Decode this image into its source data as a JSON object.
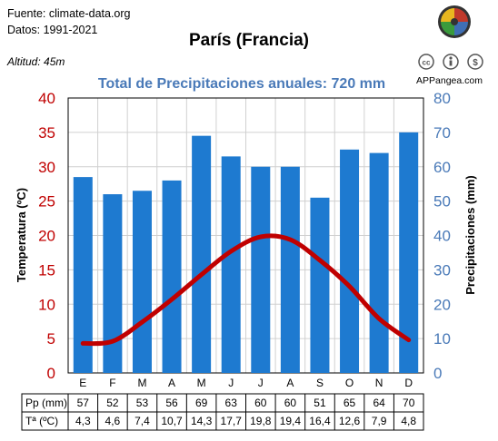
{
  "source": {
    "line1": "Fuente: climate-data.org",
    "line2": "Datos: 1991-2021"
  },
  "title": "París (Francia)",
  "altitude": "Altitud: 45m",
  "site": "APPangea.com",
  "logo": {
    "name": "puzzle-logo-icon",
    "colors": [
      "#c0392b",
      "#e8b720",
      "#3a9b3c",
      "#3f6fb5"
    ]
  },
  "license_icons": [
    "cc-icon",
    "by-icon",
    "nc-icon"
  ],
  "colors": {
    "bars": "#1e7ad0",
    "temp_line": "#c00000",
    "left_axis": "#c00000",
    "right_axis": "#4a7ab8",
    "subtitle": "#4a7ab8"
  },
  "chart_data": {
    "type": "bar",
    "subtitle": "Total de Precipitaciones anuales: 720 mm",
    "categories": [
      "E",
      "F",
      "M",
      "A",
      "M",
      "J",
      "J",
      "A",
      "S",
      "O",
      "N",
      "D"
    ],
    "precip_mm": [
      57,
      52,
      53,
      56,
      69,
      63,
      60,
      60,
      51,
      65,
      64,
      70
    ],
    "temp_c": [
      4.3,
      4.6,
      7.4,
      10.7,
      14.3,
      17.7,
      19.8,
      19.4,
      16.4,
      12.6,
      7.9,
      4.8
    ],
    "series": [
      {
        "name": "Pp (mm)",
        "type": "bar",
        "axis": "right",
        "values": [
          57,
          52,
          53,
          56,
          69,
          63,
          60,
          60,
          51,
          65,
          64,
          70
        ]
      },
      {
        "name": "Tª (ºC)",
        "type": "line",
        "axis": "left",
        "values": [
          4.3,
          4.6,
          7.4,
          10.7,
          14.3,
          17.7,
          19.8,
          19.4,
          16.4,
          12.6,
          7.9,
          4.8
        ]
      }
    ],
    "ylabel_left": "Temperatura (ºC)",
    "ylabel_right": "Precipitaciones (mm)",
    "ylim_left": [
      0,
      40
    ],
    "ylim_right": [
      0,
      80
    ],
    "yticks_left": [
      "0",
      "5",
      "10",
      "15",
      "20",
      "25",
      "30",
      "35",
      "40"
    ],
    "yticks_right": [
      "0",
      "10",
      "20",
      "30",
      "40",
      "50",
      "60",
      "70",
      "80"
    ],
    "table": {
      "rows": [
        {
          "label": "Pp (mm)",
          "values": [
            "57",
            "52",
            "53",
            "56",
            "69",
            "63",
            "60",
            "60",
            "51",
            "65",
            "64",
            "70"
          ]
        },
        {
          "label": "Tª (ºC)",
          "values": [
            "4,3",
            "4,6",
            "7,4",
            "10,7",
            "14,3",
            "17,7",
            "19,8",
            "19,4",
            "16,4",
            "12,6",
            "7,9",
            "4,8"
          ]
        }
      ]
    },
    "grid": true
  }
}
